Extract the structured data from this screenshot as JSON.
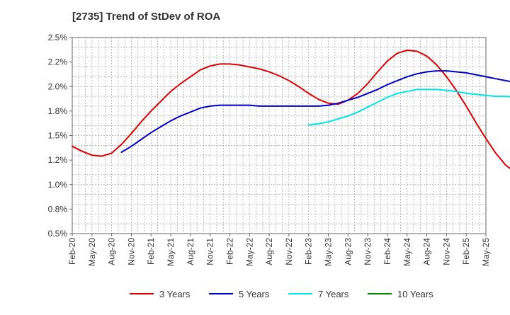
{
  "chart_data": {
    "type": "line",
    "title": "[2735]  Trend of StDev of ROA",
    "xlabel": "",
    "ylabel": "",
    "x_ticks": [
      "Feb-20",
      "May-20",
      "Aug-20",
      "Nov-20",
      "Feb-21",
      "May-21",
      "Aug-21",
      "Nov-21",
      "Feb-22",
      "May-22",
      "Aug-22",
      "Nov-22",
      "Feb-23",
      "May-23",
      "Aug-23",
      "Nov-23",
      "Feb-24",
      "May-24",
      "Aug-24",
      "Nov-24",
      "Feb-25",
      "May-25"
    ],
    "y_ticks": [
      "0.5%",
      "0.8%",
      "1.0%",
      "1.2%",
      "1.5%",
      "1.8%",
      "2.0%",
      "2.2%",
      "2.5%"
    ],
    "ylim": [
      0.5,
      2.5
    ],
    "grid": true,
    "legend_position": "bottom",
    "series": [
      {
        "name": "3 Years",
        "color": "#dd0000",
        "values": [
          1.39,
          1.34,
          1.3,
          1.29,
          1.32,
          1.41,
          1.52,
          1.64,
          1.75,
          1.85,
          1.95,
          2.03,
          2.1,
          2.17,
          2.21,
          2.23,
          2.23,
          2.22,
          2.2,
          2.18,
          2.15,
          2.11,
          2.06,
          2.0,
          1.93,
          1.87,
          1.83,
          1.82,
          1.86,
          1.93,
          2.03,
          2.15,
          2.26,
          2.34,
          2.37,
          2.36,
          2.31,
          2.22,
          2.1,
          1.96,
          1.8,
          1.63,
          1.47,
          1.32,
          1.2,
          1.12,
          1.08,
          1.07
        ]
      },
      {
        "name": "5 Years",
        "color": "#0000cc",
        "values": [
          null,
          null,
          null,
          null,
          null,
          1.33,
          1.39,
          1.46,
          1.53,
          1.59,
          1.65,
          1.7,
          1.74,
          1.78,
          1.8,
          1.81,
          1.81,
          1.81,
          1.81,
          1.8,
          1.8,
          1.8,
          1.8,
          1.8,
          1.8,
          1.8,
          1.81,
          1.83,
          1.86,
          1.89,
          1.93,
          1.97,
          2.02,
          2.06,
          2.1,
          2.13,
          2.15,
          2.16,
          2.16,
          2.15,
          2.14,
          2.12,
          2.1,
          2.08,
          2.06,
          2.04,
          2.03,
          2.03
        ]
      },
      {
        "name": "7 Years",
        "color": "#00e5e5",
        "values": [
          null,
          null,
          null,
          null,
          null,
          null,
          null,
          null,
          null,
          null,
          null,
          null,
          null,
          null,
          null,
          null,
          null,
          null,
          null,
          null,
          null,
          null,
          null,
          null,
          1.61,
          1.62,
          1.64,
          1.67,
          1.7,
          1.74,
          1.79,
          1.84,
          1.89,
          1.93,
          1.95,
          1.97,
          1.97,
          1.97,
          1.96,
          1.95,
          1.93,
          1.92,
          1.91,
          1.9,
          1.9,
          1.89,
          1.89,
          1.88
        ]
      },
      {
        "name": "10 Years",
        "color": "#008800",
        "values": []
      }
    ]
  }
}
